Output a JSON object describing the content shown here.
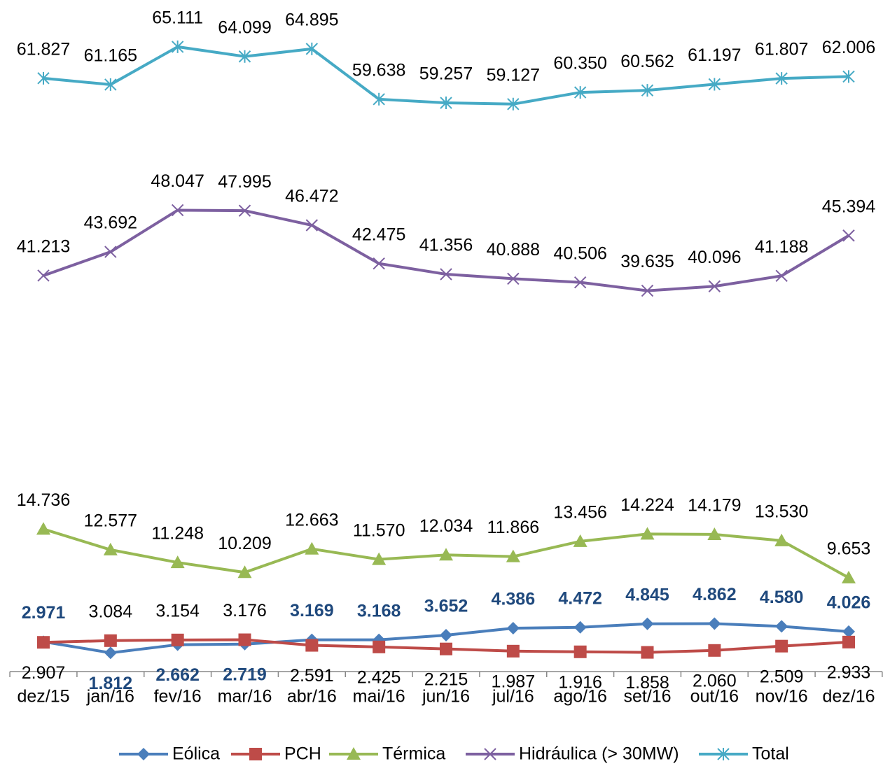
{
  "chart_data": {
    "type": "line",
    "categories": [
      "dez/15",
      "jan/16",
      "fev/16",
      "mar/16",
      "abr/16",
      "mai/16",
      "jun/16",
      "jul/16",
      "ago/16",
      "set/16",
      "out/16",
      "nov/16",
      "dez/16"
    ],
    "ylim": [
      0,
      70000
    ],
    "series": [
      {
        "name": "Eólica",
        "color": "#4a7ebb",
        "marker": "diamond",
        "values": [
          2971,
          1812,
          2662,
          2719,
          3169,
          3168,
          3652,
          4386,
          4472,
          4845,
          4862,
          4580,
          4026
        ],
        "value_labels": [
          "2.971",
          "1.812",
          "2.662",
          "2.719",
          "3.169",
          "3.168",
          "3.652",
          "4.386",
          "4.472",
          "4.845",
          "4.862",
          "4.580",
          "4.026"
        ]
      },
      {
        "name": "PCH",
        "color": "#be4b48",
        "marker": "square",
        "values": [
          2907,
          3084,
          3154,
          3176,
          2591,
          2425,
          2215,
          1987,
          1916,
          1858,
          2060,
          2509,
          2933
        ],
        "value_labels": [
          "2.907",
          "3.084",
          "3.154",
          "3.176",
          "2.591",
          "2.425",
          "2.215",
          "1.987",
          "1.916",
          "1.858",
          "2.060",
          "2.509",
          "2.933"
        ]
      },
      {
        "name": "Térmica",
        "color": "#98b954",
        "marker": "triangle",
        "values": [
          14736,
          12577,
          11248,
          10209,
          12663,
          11570,
          12034,
          11866,
          13456,
          14224,
          14179,
          13530,
          9653
        ],
        "value_labels": [
          "14.736",
          "12.577",
          "11.248",
          "10.209",
          "12.663",
          "11.570",
          "12.034",
          "11.866",
          "13.456",
          "14.224",
          "14.179",
          "13.530",
          "9.653"
        ]
      },
      {
        "name": "Hidráulica (> 30MW)",
        "color": "#7d60a0",
        "marker": "x",
        "values": [
          41213,
          43692,
          48047,
          47995,
          46472,
          42475,
          41356,
          40888,
          40506,
          39635,
          40096,
          41188,
          45394
        ],
        "value_labels": [
          "41.213",
          "43.692",
          "48.047",
          "47.995",
          "46.472",
          "42.475",
          "41.356",
          "40.888",
          "40.506",
          "39.635",
          "40.096",
          "41.188",
          "45.394"
        ]
      },
      {
        "name": "Total",
        "color": "#46aac5",
        "marker": "star",
        "values": [
          61827,
          61165,
          65111,
          64099,
          64895,
          59638,
          59257,
          59127,
          60350,
          60562,
          61197,
          61807,
          62006
        ],
        "value_labels": [
          "61.827",
          "61.165",
          "65.111",
          "64.099",
          "64.895",
          "59.638",
          "59.257",
          "59.127",
          "60.350",
          "60.562",
          "61.197",
          "61.807",
          "62.006"
        ]
      }
    ]
  }
}
